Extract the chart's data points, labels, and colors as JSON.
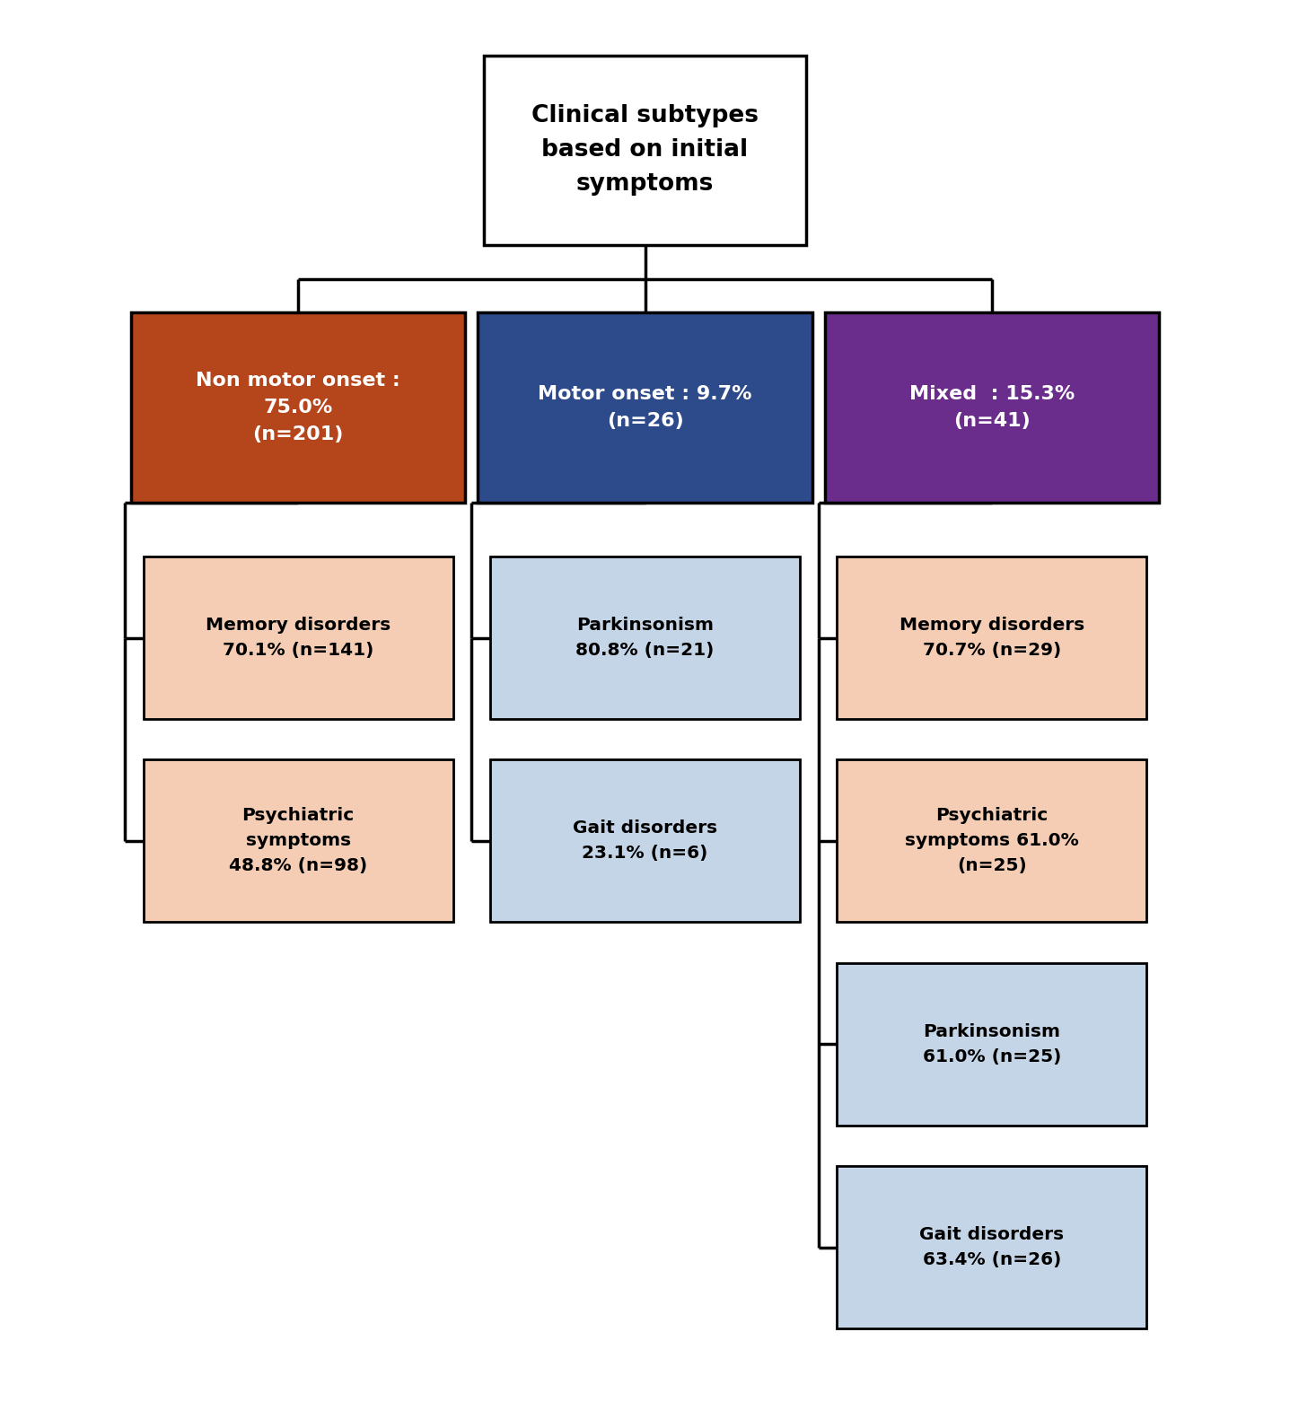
{
  "title_box": {
    "text": "Clinical subtypes\nbased on initial\nsymptoms",
    "bg_color": "#ffffff",
    "text_color": "#000000",
    "border_color": "#000000"
  },
  "level2_boxes": [
    {
      "text": "Non motor onset :\n75.0%\n(n=201)",
      "bg_color": "#b5451b",
      "text_color": "#ffffff",
      "border_color": "#000000"
    },
    {
      "text": "Motor onset : 9.7%\n(n=26)",
      "bg_color": "#2d4a8a",
      "text_color": "#ffffff",
      "border_color": "#000000"
    },
    {
      "text": "Mixed  : 15.3%\n(n=41)",
      "bg_color": "#6b2d8b",
      "text_color": "#ffffff",
      "border_color": "#000000"
    }
  ],
  "left_children": [
    {
      "text": "Memory disorders\n70.1% (n=141)",
      "bg_color": "#f5cdb4",
      "text_color": "#000000",
      "border_color": "#000000"
    },
    {
      "text": "Psychiatric\nsymptoms\n48.8% (n=98)",
      "bg_color": "#f5cdb4",
      "text_color": "#000000",
      "border_color": "#000000"
    }
  ],
  "mid_children": [
    {
      "text": "Parkinsonism\n80.8% (n=21)",
      "bg_color": "#c5d5e8",
      "text_color": "#000000",
      "border_color": "#000000"
    },
    {
      "text": "Gait disorders\n23.1% (n=6)",
      "bg_color": "#c5d5e8",
      "text_color": "#000000",
      "border_color": "#000000"
    }
  ],
  "right_children": [
    {
      "text": "Memory disorders\n70.7% (n=29)",
      "bg_color": "#f5cdb4",
      "text_color": "#000000",
      "border_color": "#000000"
    },
    {
      "text": "Psychiatric\nsymptoms 61.0%\n(n=25)",
      "bg_color": "#f5cdb4",
      "text_color": "#000000",
      "border_color": "#000000"
    },
    {
      "text": "Parkinsonism\n61.0% (n=25)",
      "bg_color": "#c5d5e8",
      "text_color": "#000000",
      "border_color": "#000000"
    },
    {
      "text": "Gait disorders\n63.4% (n=26)",
      "bg_color": "#c5d5e8",
      "text_color": "#000000",
      "border_color": "#000000"
    }
  ],
  "line_color": "#000000",
  "line_width": 2.5
}
